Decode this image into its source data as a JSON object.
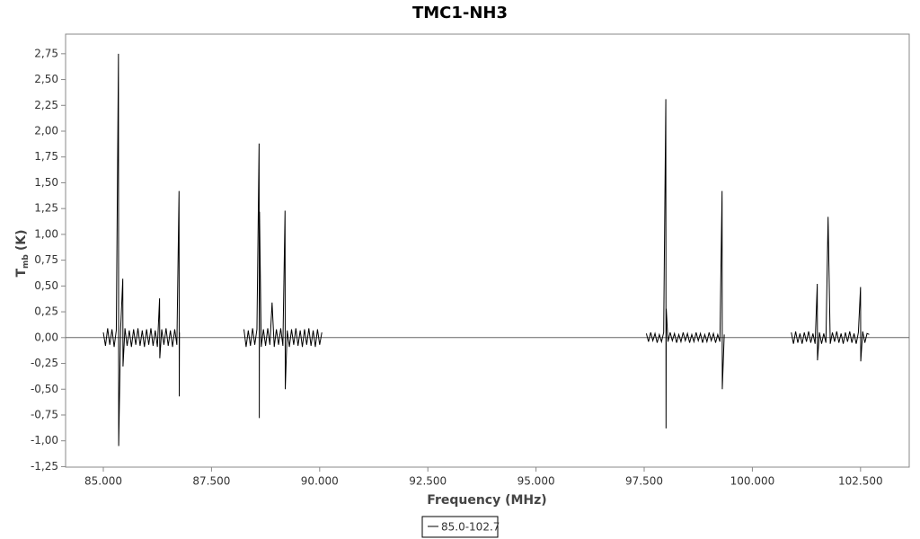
{
  "chart_data": {
    "type": "line",
    "title": "TMC1-NH3",
    "xlabel": "Frequency (MHz)",
    "ylabel": "T",
    "ylabel_sub": "mb",
    "ylabel_unit": "(K)",
    "x": [
      85000,
      85050,
      85100,
      85150,
      85200,
      85250,
      85300,
      85350,
      85355,
      85400,
      85450,
      85455,
      85500,
      85550,
      85600,
      85650,
      85700,
      85750,
      85800,
      85850,
      85900,
      85950,
      86000,
      86050,
      86100,
      86150,
      86200,
      86250,
      86300,
      86305,
      86350,
      86400,
      86450,
      86500,
      86550,
      86600,
      86650,
      86700,
      86750,
      86755,
      86760,
      87500,
      88250,
      88300,
      88350,
      88400,
      88450,
      88500,
      88550,
      88600,
      88605,
      88610,
      88650,
      88700,
      88750,
      88800,
      88850,
      88900,
      88950,
      89000,
      89050,
      89100,
      89150,
      89200,
      89205,
      89250,
      89300,
      89350,
      89400,
      89450,
      89500,
      89550,
      89600,
      89650,
      89700,
      89750,
      89800,
      89850,
      89900,
      89950,
      90000,
      90050,
      93750,
      97550,
      97600,
      97650,
      97700,
      97750,
      97800,
      97850,
      97900,
      97950,
      98000,
      98005,
      98010,
      98050,
      98100,
      98150,
      98200,
      98250,
      98300,
      98350,
      98400,
      98450,
      98500,
      98550,
      98600,
      98650,
      98700,
      98750,
      98800,
      98850,
      98900,
      98950,
      99000,
      99050,
      99100,
      99150,
      99200,
      99250,
      99300,
      99305,
      99350,
      100000,
      100900,
      100950,
      101000,
      101050,
      101100,
      101150,
      101200,
      101250,
      101300,
      101350,
      101400,
      101450,
      101500,
      101505,
      101550,
      101600,
      101650,
      101700,
      101750,
      101800,
      101850,
      101900,
      101950,
      102000,
      102050,
      102100,
      102150,
      102200,
      102250,
      102300,
      102350,
      102400,
      102450,
      102500,
      102505,
      102550,
      102600,
      102650,
      102700
    ],
    "series": [
      {
        "name": "85.0-102.7",
        "color": "#000000",
        "values": [
          0.05,
          -0.08,
          0.09,
          -0.07,
          0.08,
          -0.09,
          0.07,
          2.75,
          -1.05,
          0.08,
          0.57,
          -0.28,
          0.09,
          -0.08,
          0.07,
          -0.09,
          0.08,
          -0.07,
          0.09,
          -0.08,
          0.07,
          -0.09,
          0.08,
          -0.07,
          0.09,
          -0.08,
          0.07,
          -0.09,
          0.38,
          -0.2,
          0.08,
          -0.07,
          0.09,
          -0.08,
          0.07,
          -0.09,
          0.08,
          -0.07,
          1.42,
          -0.57,
          0.05,
          null,
          0.08,
          -0.09,
          0.07,
          -0.08,
          0.09,
          -0.07,
          0.08,
          1.88,
          -0.78,
          1.22,
          -0.09,
          0.08,
          -0.08,
          0.09,
          -0.07,
          0.34,
          -0.09,
          0.08,
          -0.07,
          0.09,
          -0.08,
          1.23,
          -0.5,
          0.07,
          -0.09,
          0.08,
          -0.07,
          0.09,
          -0.08,
          0.07,
          -0.09,
          0.08,
          -0.07,
          0.09,
          -0.08,
          0.07,
          -0.09,
          0.08,
          -0.07,
          0.05,
          null,
          0.04,
          -0.04,
          0.05,
          -0.03,
          0.04,
          -0.05,
          0.03,
          -0.04,
          0.05,
          2.31,
          -0.88,
          0.28,
          -0.04,
          0.05,
          -0.03,
          0.04,
          -0.05,
          0.03,
          -0.04,
          0.05,
          -0.03,
          0.04,
          -0.05,
          0.03,
          -0.04,
          0.05,
          -0.03,
          0.04,
          -0.05,
          0.03,
          -0.04,
          0.05,
          -0.03,
          0.04,
          -0.05,
          0.03,
          -0.04,
          1.42,
          -0.5,
          0.03,
          null,
          0.05,
          -0.06,
          0.06,
          -0.05,
          0.04,
          -0.06,
          0.05,
          -0.04,
          0.06,
          -0.05,
          0.04,
          -0.06,
          0.52,
          -0.22,
          0.05,
          -0.06,
          0.04,
          -0.05,
          1.17,
          -0.06,
          0.05,
          -0.04,
          0.06,
          -0.05,
          0.04,
          -0.06,
          0.05,
          -0.04,
          0.06,
          -0.05,
          0.04,
          -0.06,
          0.05,
          0.49,
          -0.23,
          0.06,
          -0.05,
          0.04,
          0.03
        ]
      }
    ],
    "xlim": [
      84128,
      103625
    ],
    "ylim": [
      -1.255,
      2.94
    ],
    "xticks": [
      {
        "value": 85000,
        "label": "85.000"
      },
      {
        "value": 87500,
        "label": "87.500"
      },
      {
        "value": 90000,
        "label": "90.000"
      },
      {
        "value": 92500,
        "label": "92.500"
      },
      {
        "value": 95000,
        "label": "95.000"
      },
      {
        "value": 97500,
        "label": "97.500"
      },
      {
        "value": 100000,
        "label": "100.000"
      },
      {
        "value": 102500,
        "label": "102.500"
      }
    ],
    "yticks": [
      {
        "value": -1.25,
        "label": "-1,25"
      },
      {
        "value": -1,
        "label": "-1,00"
      },
      {
        "value": -0.75,
        "label": "-0,75"
      },
      {
        "value": -0.5,
        "label": "-0,50"
      },
      {
        "value": -0.25,
        "label": "-0,25"
      },
      {
        "value": 0,
        "label": "0,00"
      },
      {
        "value": 0.25,
        "label": "0,25"
      },
      {
        "value": 0.5,
        "label": "0,50"
      },
      {
        "value": 0.75,
        "label": "0,75"
      },
      {
        "value": 1,
        "label": "1,00"
      },
      {
        "value": 1.25,
        "label": "1,25"
      },
      {
        "value": 1.5,
        "label": "1,50"
      },
      {
        "value": 1.75,
        "label": "1,75"
      },
      {
        "value": 2,
        "label": "2,00"
      },
      {
        "value": 2.25,
        "label": "2,25"
      },
      {
        "value": 2.5,
        "label": "2,50"
      },
      {
        "value": 2.75,
        "label": "2,75"
      }
    ],
    "grid": false
  }
}
